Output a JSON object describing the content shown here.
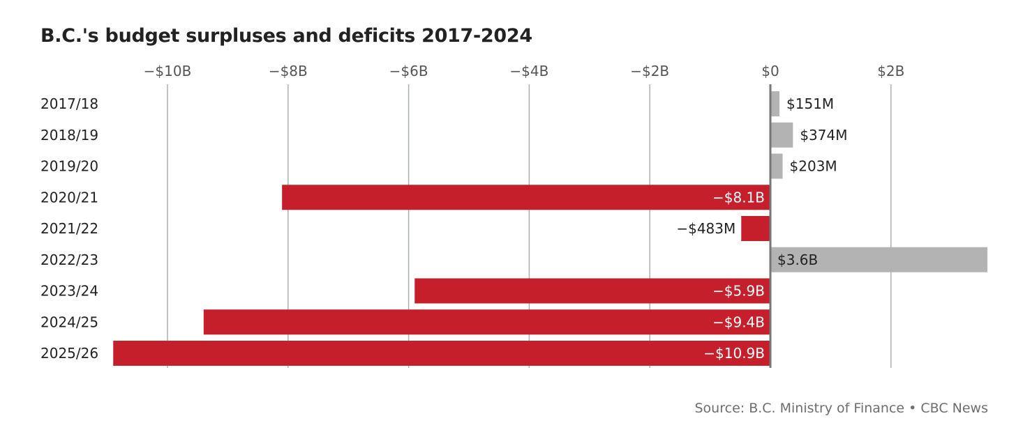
{
  "chart_data": {
    "type": "bar",
    "orientation": "horizontal",
    "title": "B.C.'s budget surpluses and deficits 2017-2024",
    "source": "Source: B.C. Ministry of Finance • CBC News",
    "xlabel": "",
    "ylabel": "",
    "xlim": [
      -10.9,
      3.6
    ],
    "x_unit": "billions of dollars",
    "x_ticks": [
      {
        "value": -10,
        "label": "−$10B"
      },
      {
        "value": -8,
        "label": "−$8B"
      },
      {
        "value": -6,
        "label": "−$6B"
      },
      {
        "value": -4,
        "label": "−$4B"
      },
      {
        "value": -2,
        "label": "−$2B"
      },
      {
        "value": 0,
        "label": "$0"
      },
      {
        "value": 2,
        "label": "$2B"
      }
    ],
    "grid": true,
    "categories": [
      "2017/18",
      "2018/19",
      "2019/20",
      "2020/21",
      "2021/22",
      "2022/23",
      "2023/24",
      "2024/25",
      "2025/26"
    ],
    "values": [
      0.151,
      0.374,
      0.203,
      -8.1,
      -0.483,
      3.6,
      -5.9,
      -9.4,
      -10.9
    ],
    "labels": [
      "$151M",
      "$374M",
      "$203M",
      "−$8.1B",
      "−$483M",
      "$3.6B",
      "−$5.9B",
      "−$9.4B",
      "−$10.9B"
    ],
    "colors": {
      "surplus": "#b3b3b3",
      "deficit": "#c41f2a",
      "gridline": "#a8b0b0",
      "zero_line": "#777777"
    }
  }
}
